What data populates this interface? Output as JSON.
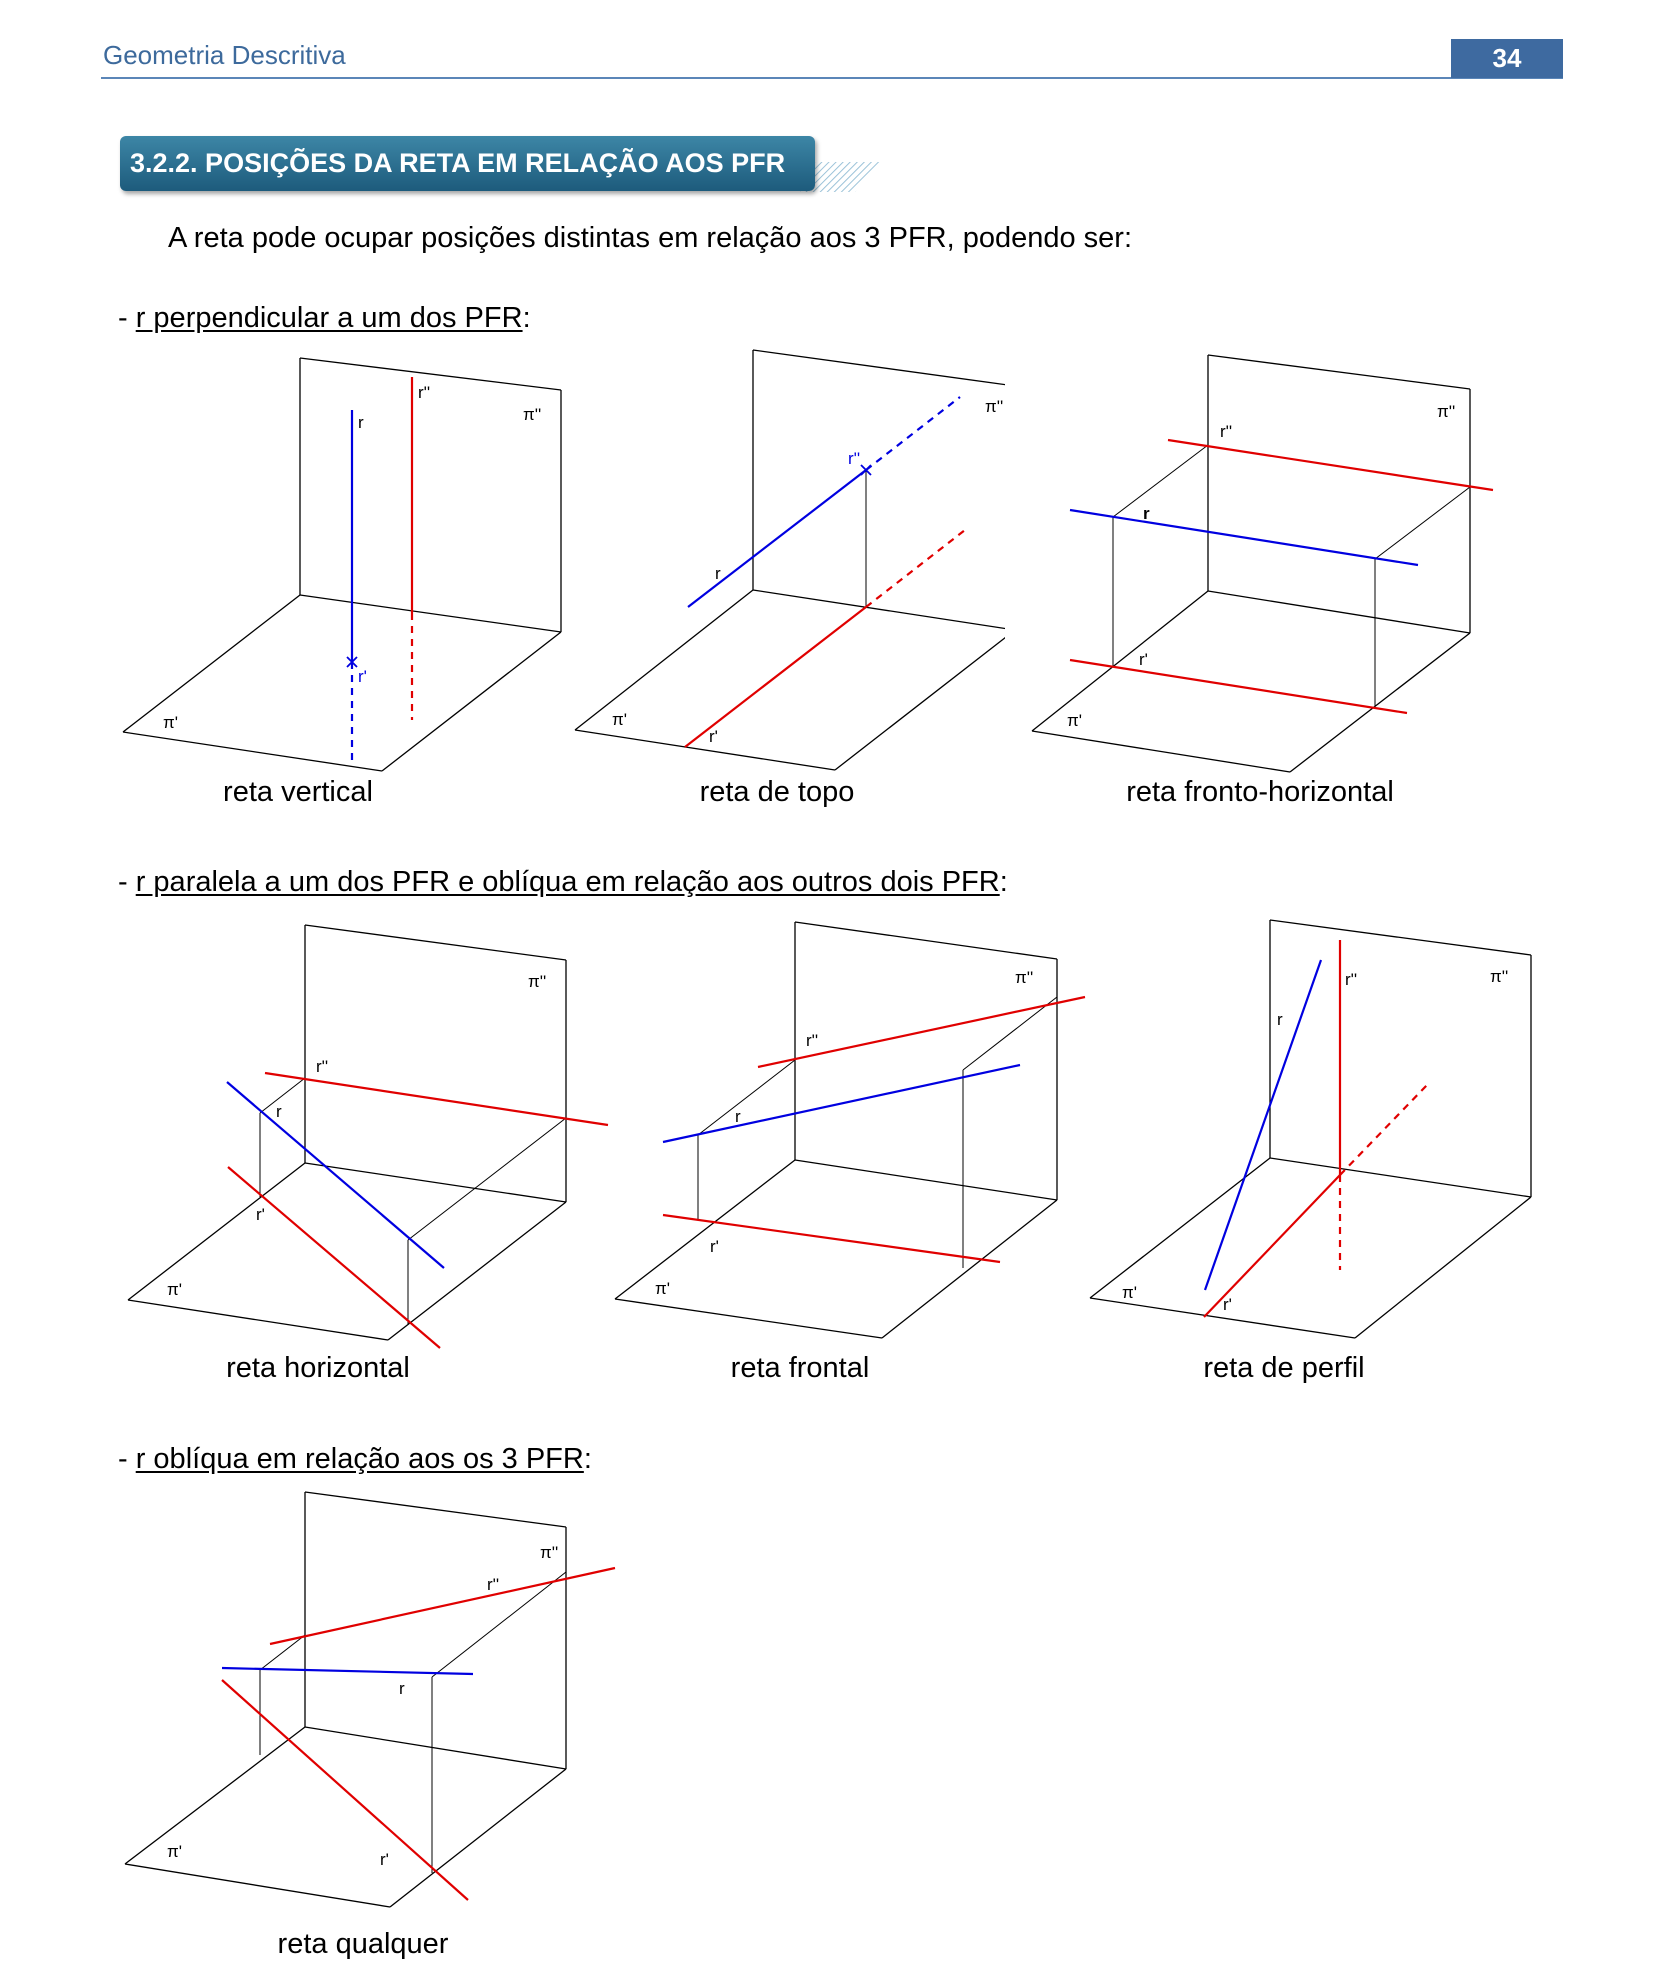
{
  "header": {
    "title": "Geometria Descritiva",
    "page": "34"
  },
  "section": {
    "title": "3.2.2. POSIÇÕES DA RETA EM RELAÇÃO AOS PFR"
  },
  "intro": "A reta pode ocupar posições distintas em relação aos 3 PFR, podendo ser:",
  "groups": [
    {
      "dash": "- ",
      "label": "r perpendicular a um dos PFR",
      "suffix": ":"
    },
    {
      "dash": "- ",
      "label": "r paralela a um dos PFR e oblíqua em relação aos outros dois PFR",
      "suffix": ":"
    },
    {
      "dash": "- ",
      "label": "r oblíqua em relação aos os 3 PFR",
      "suffix": ":"
    }
  ],
  "captions": {
    "vertical": "reta vertical",
    "topo": "reta de topo",
    "fronto": "reta fronto-horizontal",
    "horizontal": "reta horizontal",
    "frontal": "reta frontal",
    "perfil": "reta de perfil",
    "qualquer": "reta qualquer"
  },
  "labels": {
    "r": "r",
    "r1": "r'",
    "r2": "r''",
    "pi1": "π'",
    "pi2": "π''"
  },
  "colors": {
    "line": "#0000e0",
    "projection": "#e00000",
    "frame": "#000000",
    "header": "#3e6aa0"
  }
}
